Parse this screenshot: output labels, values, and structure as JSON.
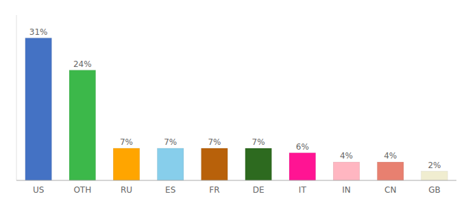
{
  "chart_data": {
    "type": "bar",
    "categories": [
      "US",
      "OTH",
      "RU",
      "ES",
      "FR",
      "DE",
      "IT",
      "IN",
      "CN",
      "GB"
    ],
    "values": [
      31,
      24,
      7,
      7,
      7,
      7,
      6,
      4,
      4,
      2
    ],
    "value_labels": [
      "31%",
      "24%",
      "7%",
      "7%",
      "7%",
      "7%",
      "6%",
      "4%",
      "4%",
      "2%"
    ],
    "colors": [
      "#4472C4",
      "#3CB84A",
      "#FFA500",
      "#87CEEB",
      "#B8610A",
      "#2D6A1F",
      "#FF1493",
      "#FFB6C1",
      "#E88070",
      "#F0EDD0"
    ],
    "ylim": [
      0,
      36
    ],
    "data_labels": true,
    "tick_labels": "x"
  }
}
